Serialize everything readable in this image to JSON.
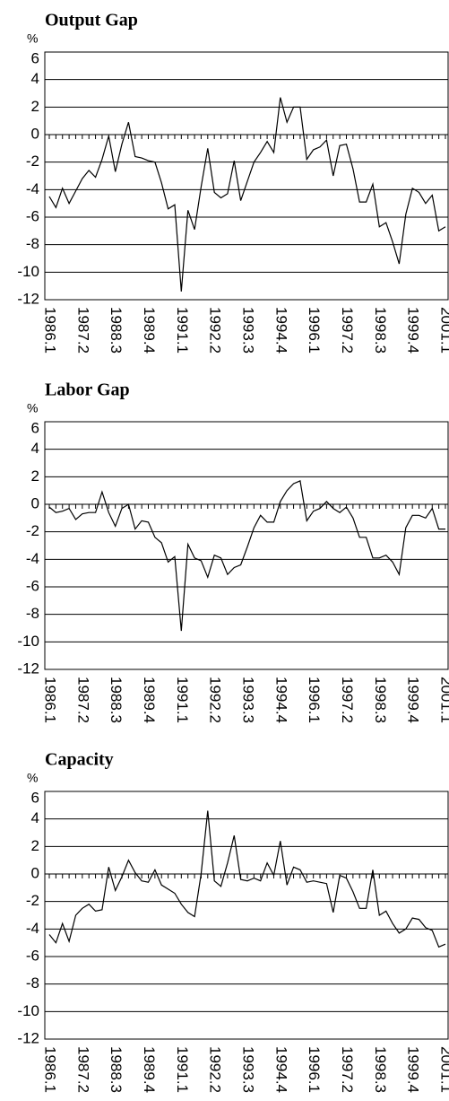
{
  "chart_data": [
    {
      "type": "line",
      "title": "Output Gap",
      "y_label": "%",
      "categories": [
        "1986.1",
        null,
        null,
        null,
        null,
        "1987.2",
        null,
        null,
        null,
        null,
        "1988.3",
        null,
        null,
        null,
        null,
        "1989.4",
        null,
        null,
        null,
        null,
        "1991.1",
        null,
        null,
        null,
        null,
        "1992.2",
        null,
        null,
        null,
        null,
        "1993.3",
        null,
        null,
        null,
        null,
        "1994.4",
        null,
        null,
        null,
        null,
        "1996.1",
        null,
        null,
        null,
        null,
        "1997.2",
        null,
        null,
        null,
        null,
        "1998.3",
        null,
        null,
        null,
        null,
        "1999.4",
        null,
        null,
        null,
        null,
        "2001.1"
      ],
      "values": [
        -4.5,
        -5.3,
        -3.9,
        -5.0,
        -4.1,
        -3.2,
        -2.6,
        -3.1,
        -1.8,
        -0.1,
        -2.7,
        -0.7,
        0.9,
        -1.6,
        -1.7,
        -1.9,
        -2.0,
        -3.5,
        -5.4,
        -5.1,
        -11.4,
        -5.5,
        -6.9,
        -3.8,
        -1.0,
        -4.2,
        -4.6,
        -4.3,
        -1.9,
        -4.8,
        -3.4,
        -2.0,
        -1.3,
        -0.5,
        -1.3,
        2.7,
        0.9,
        2.0,
        2.0,
        -1.8,
        -1.1,
        -0.9,
        -0.4,
        -3.0,
        -0.8,
        -0.7,
        -2.5,
        -4.9,
        -4.9,
        -3.6,
        -6.7,
        -6.4,
        -7.8,
        -9.4,
        -5.8,
        -3.9,
        -4.2,
        -5.0,
        -4.4,
        -7.0,
        -6.7
      ],
      "color": "#000000",
      "ylim": [
        -12,
        6
      ],
      "yticks": [
        -12,
        -10,
        -8,
        -6,
        -4,
        -2,
        0,
        2,
        4,
        6
      ],
      "grid": true
    },
    {
      "type": "line",
      "title": "Labor Gap",
      "y_label": "%",
      "categories": [
        "1986.1",
        null,
        null,
        null,
        null,
        "1987.2",
        null,
        null,
        null,
        null,
        "1988.3",
        null,
        null,
        null,
        null,
        "1989.4",
        null,
        null,
        null,
        null,
        "1991.1",
        null,
        null,
        null,
        null,
        "1992.2",
        null,
        null,
        null,
        null,
        "1993.3",
        null,
        null,
        null,
        null,
        "1994.4",
        null,
        null,
        null,
        null,
        "1996.1",
        null,
        null,
        null,
        null,
        "1997.2",
        null,
        null,
        null,
        null,
        "1998.3",
        null,
        null,
        null,
        null,
        "1999.4",
        null,
        null,
        null,
        null,
        "2001.1"
      ],
      "values": [
        -0.2,
        -0.6,
        -0.5,
        -0.3,
        -1.1,
        -0.7,
        -0.6,
        -0.6,
        0.9,
        -0.6,
        -1.6,
        -0.3,
        0.0,
        -1.8,
        -1.2,
        -1.3,
        -2.4,
        -2.8,
        -4.2,
        -3.8,
        -9.2,
        -2.9,
        -3.9,
        -4.1,
        -5.3,
        -3.7,
        -3.9,
        -5.1,
        -4.6,
        -4.4,
        -3.1,
        -1.7,
        -0.8,
        -1.3,
        -1.3,
        0.2,
        1.0,
        1.5,
        1.7,
        -1.2,
        -0.5,
        -0.3,
        0.2,
        -0.3,
        -0.6,
        -0.2,
        -1.0,
        -2.4,
        -2.4,
        -3.9,
        -3.9,
        -3.7,
        -4.2,
        -5.1,
        -1.7,
        -0.8,
        -0.8,
        -1.0,
        -0.3,
        -1.8,
        -1.8
      ],
      "color": "#000000",
      "ylim": [
        -12,
        6
      ],
      "yticks": [
        -12,
        -10,
        -8,
        -6,
        -4,
        -2,
        0,
        2,
        4,
        6
      ],
      "grid": true
    },
    {
      "type": "line",
      "title": "Capacity",
      "y_label": "%",
      "categories": [
        "1986.1",
        null,
        null,
        null,
        null,
        "1987.2",
        null,
        null,
        null,
        null,
        "1988.3",
        null,
        null,
        null,
        null,
        "1989.4",
        null,
        null,
        null,
        null,
        "1991.1",
        null,
        null,
        null,
        null,
        "1992.2",
        null,
        null,
        null,
        null,
        "1993.3",
        null,
        null,
        null,
        null,
        "1994.4",
        null,
        null,
        null,
        null,
        "1996.1",
        null,
        null,
        null,
        null,
        "1997.2",
        null,
        null,
        null,
        null,
        "1998.3",
        null,
        null,
        null,
        null,
        "1999.4",
        null,
        null,
        null,
        null,
        "2001.1"
      ],
      "values": [
        -4.4,
        -5.0,
        -3.6,
        -4.9,
        -3.0,
        -2.5,
        -2.2,
        -2.7,
        -2.6,
        0.5,
        -1.2,
        -0.2,
        1.0,
        0.1,
        -0.5,
        -0.6,
        0.3,
        -0.8,
        -1.1,
        -1.4,
        -2.2,
        -2.8,
        -3.1,
        0.0,
        4.6,
        -0.5,
        -0.9,
        0.8,
        2.8,
        -0.4,
        -0.5,
        -0.3,
        -0.5,
        0.8,
        -0.1,
        2.4,
        -0.8,
        0.5,
        0.3,
        -0.6,
        -0.5,
        -0.6,
        -0.7,
        -2.8,
        -0.1,
        -0.3,
        -1.3,
        -2.5,
        -2.5,
        0.3,
        -3.0,
        -2.7,
        -3.6,
        -4.3,
        -4.0,
        -3.2,
        -3.3,
        -3.9,
        -4.1,
        -5.3,
        -5.1
      ],
      "color": "#000000",
      "ylim": [
        -12,
        6
      ],
      "yticks": [
        -12,
        -10,
        -8,
        -6,
        -4,
        -2,
        0,
        2,
        4,
        6
      ],
      "grid": true
    }
  ]
}
